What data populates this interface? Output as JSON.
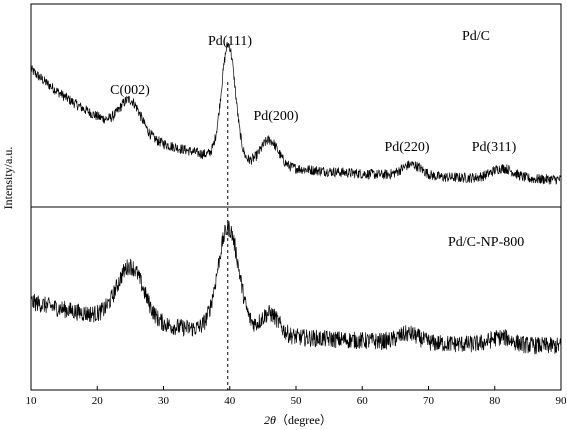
{
  "chart_data": {
    "type": "line",
    "xlabel_italic": "2θ",
    "xlabel_rest": "（degree）",
    "ylabel": "Intensity/a.u.",
    "xlim": [
      10,
      90
    ],
    "x_ticks": [
      10,
      20,
      30,
      40,
      50,
      60,
      70,
      80,
      90
    ],
    "grid": false,
    "reference_line_x": 39.7,
    "panels": [
      {
        "name": "Pd/C",
        "noise": 0.09,
        "background": {
          "start": 1.05,
          "decay": 0.055,
          "floor": 0.08
        },
        "peaks": [
          {
            "label": "C(002)",
            "center": 25.0,
            "height": 0.28,
            "width": 1.6
          },
          {
            "label": "Pd(111)",
            "center": 39.8,
            "height": 1.0,
            "width": 1.05
          },
          {
            "label": "Pd(200)",
            "center": 46.0,
            "height": 0.22,
            "width": 1.3
          },
          {
            "label": "Pd(220)",
            "center": 67.5,
            "height": 0.1,
            "width": 1.5
          },
          {
            "label": "Pd(311)",
            "center": 81.2,
            "height": 0.09,
            "width": 1.7
          }
        ]
      },
      {
        "name": "Pd/C-NP-800",
        "noise": 0.16,
        "background": {
          "start": 0.55,
          "decay": 0.035,
          "floor": 0.12
        },
        "peaks": [
          {
            "label": "",
            "center": 25.0,
            "height": 0.5,
            "width": 2.0
          },
          {
            "label": "",
            "center": 39.8,
            "height": 0.95,
            "width": 1.6
          },
          {
            "label": "",
            "center": 46.0,
            "height": 0.2,
            "width": 1.4
          },
          {
            "label": "",
            "center": 67.0,
            "height": 0.08,
            "width": 1.5
          },
          {
            "label": "",
            "center": 81.0,
            "height": 0.07,
            "width": 1.6
          }
        ]
      }
    ]
  }
}
